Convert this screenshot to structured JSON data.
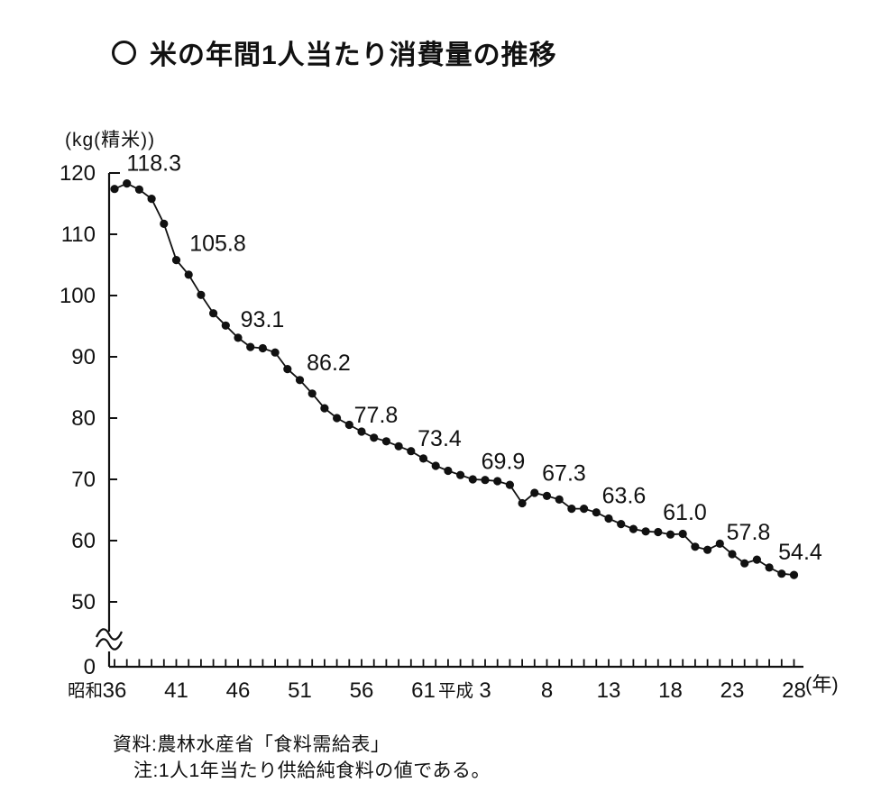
{
  "page": {
    "background": "#ffffff",
    "ink": "#111111"
  },
  "title": {
    "bullet_icon": "〇",
    "text": "米の年間1人当たり消費量の推移"
  },
  "chart_data": {
    "type": "line",
    "title": "米の年間1人当たり消費量の推移",
    "ylabel": "(kg(精米))",
    "x_unit_suffix": "(年)",
    "ylim": [
      0,
      120
    ],
    "yticks": [
      120,
      110,
      100,
      90,
      80,
      70,
      60,
      50,
      0
    ],
    "axis_break_between": [
      0,
      50
    ],
    "grid": false,
    "marker": "filled-circle",
    "line_color": "#111111",
    "years": [
      1961,
      1962,
      1963,
      1964,
      1965,
      1966,
      1967,
      1968,
      1969,
      1970,
      1971,
      1972,
      1973,
      1974,
      1975,
      1976,
      1977,
      1978,
      1979,
      1980,
      1981,
      1982,
      1983,
      1984,
      1985,
      1986,
      1987,
      1988,
      1989,
      1990,
      1991,
      1992,
      1993,
      1994,
      1995,
      1996,
      1997,
      1998,
      1999,
      2000,
      2001,
      2002,
      2003,
      2004,
      2005,
      2006,
      2007,
      2008,
      2009,
      2010,
      2011,
      2012,
      2013,
      2014,
      2015,
      2016
    ],
    "values": [
      117.4,
      118.3,
      117.3,
      115.8,
      111.7,
      105.8,
      103.4,
      100.1,
      97.1,
      95.1,
      93.1,
      91.6,
      91.4,
      90.7,
      88.0,
      86.2,
      84.0,
      81.6,
      80.0,
      78.9,
      77.8,
      76.8,
      76.2,
      75.4,
      74.6,
      73.4,
      72.2,
      71.4,
      70.7,
      70.0,
      69.9,
      69.7,
      69.1,
      66.1,
      67.8,
      67.3,
      66.7,
      65.2,
      65.2,
      64.6,
      63.6,
      62.7,
      61.9,
      61.5,
      61.4,
      61.0,
      61.1,
      59.0,
      58.5,
      59.5,
      57.8,
      56.3,
      56.9,
      55.6,
      54.6,
      54.4
    ],
    "x_tick_labels": [
      {
        "year": 1961,
        "prefix": "昭和",
        "label": "36"
      },
      {
        "year": 1966,
        "prefix": "",
        "label": "41"
      },
      {
        "year": 1971,
        "prefix": "",
        "label": "46"
      },
      {
        "year": 1976,
        "prefix": "",
        "label": "51"
      },
      {
        "year": 1981,
        "prefix": "",
        "label": "56"
      },
      {
        "year": 1986,
        "prefix": "",
        "label": "61"
      },
      {
        "year": 1991,
        "prefix": "平成",
        "label": "3"
      },
      {
        "year": 1996,
        "prefix": "",
        "label": "8"
      },
      {
        "year": 2001,
        "prefix": "",
        "label": "13"
      },
      {
        "year": 2006,
        "prefix": "",
        "label": "18"
      },
      {
        "year": 2011,
        "prefix": "",
        "label": "23"
      },
      {
        "year": 2016,
        "prefix": "",
        "label": "28"
      }
    ],
    "point_labels": [
      {
        "year": 1962,
        "text": "118.3"
      },
      {
        "year": 1966,
        "text": "105.8"
      },
      {
        "year": 1971,
        "text": "93.1"
      },
      {
        "year": 1976,
        "text": "86.2"
      },
      {
        "year": 1981,
        "text": "77.8"
      },
      {
        "year": 1986,
        "text": "73.4"
      },
      {
        "year": 1991,
        "text": "69.9"
      },
      {
        "year": 1996,
        "text": "67.3"
      },
      {
        "year": 2001,
        "text": "63.6"
      },
      {
        "year": 2006,
        "text": "61.0"
      },
      {
        "year": 2011,
        "text": "57.8"
      },
      {
        "year": 2016,
        "text": "54.4"
      }
    ]
  },
  "source": "資料:農林水産省「食料需給表」",
  "note": "注:1人1年当たり供給純食料の値である。"
}
